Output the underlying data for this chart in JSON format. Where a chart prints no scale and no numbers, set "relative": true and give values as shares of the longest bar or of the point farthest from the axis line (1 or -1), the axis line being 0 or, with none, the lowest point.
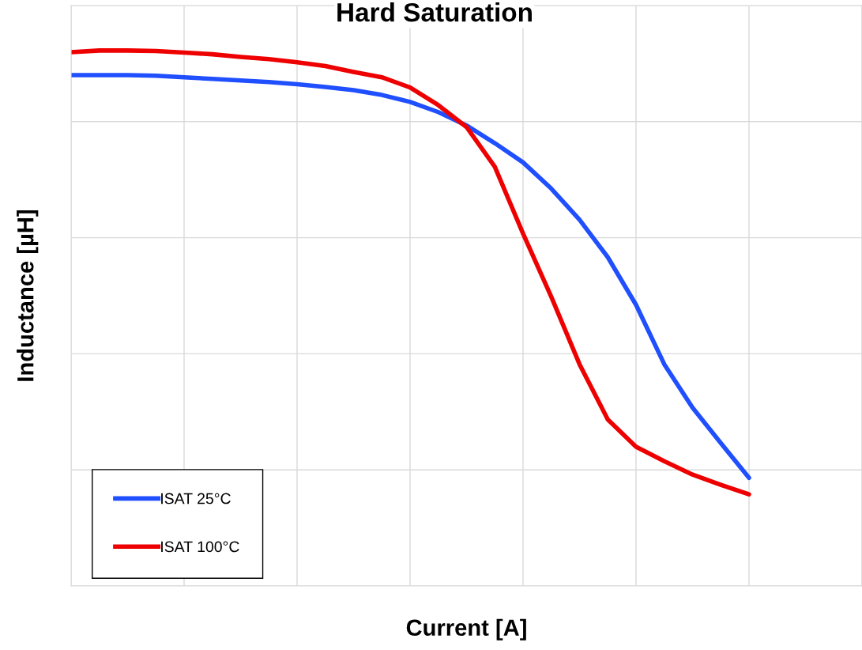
{
  "chart_data": {
    "type": "line",
    "title": "Hard Saturation",
    "xlabel": "Current [A]",
    "ylabel": "Inductance [µH]",
    "relative": true,
    "grid": true,
    "legend": "bottom left",
    "marker": "none",
    "line_style": "solid",
    "categories": [
      null,
      null,
      null,
      null,
      null,
      null,
      null,
      null,
      null,
      null,
      null,
      null,
      null,
      null,
      null,
      null,
      null,
      null,
      null,
      null,
      null,
      null,
      null,
      null,
      null,
      null,
      null,
      null
    ],
    "series": [
      {
        "name": "ISAT 25°C",
        "color": "#1f4fff",
        "values": [
          0.954,
          0.954,
          0.954,
          0.953,
          0.95,
          0.947,
          0.944,
          0.941,
          0.937,
          0.932,
          0.926,
          0.917,
          0.904,
          0.885,
          0.86,
          0.827,
          0.791,
          0.742,
          0.684,
          0.614,
          0.525,
          0.414,
          0.333,
          0.267,
          0.202,
          null,
          null,
          null
        ]
      },
      {
        "name": "ISAT 100°C",
        "color": "#ee0000",
        "values": [
          0.997,
          1.0,
          1.0,
          0.999,
          0.996,
          0.993,
          0.988,
          0.984,
          0.978,
          0.971,
          0.96,
          0.95,
          0.931,
          0.898,
          0.857,
          0.783,
          0.658,
          0.54,
          0.414,
          0.311,
          0.26,
          0.233,
          0.208,
          0.189,
          0.171,
          null,
          null,
          null
        ]
      }
    ]
  }
}
